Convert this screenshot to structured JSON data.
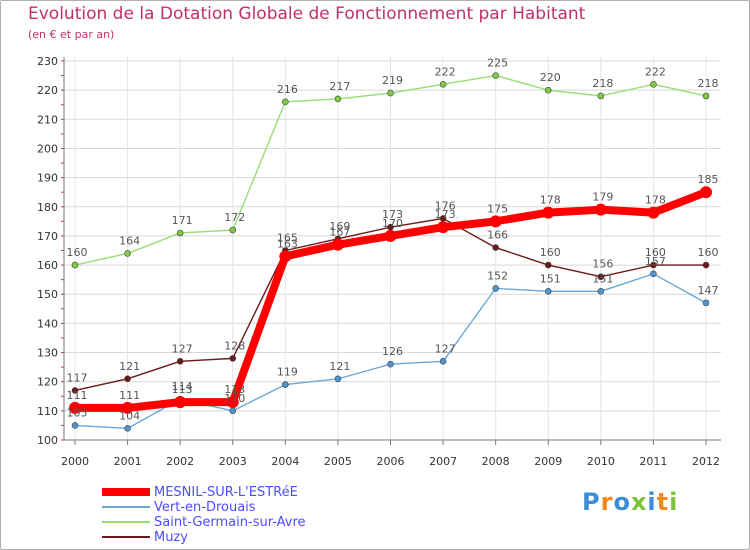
{
  "chart_data": {
    "type": "line",
    "title": "Evolution de la Dotation Globale de Fonctionnement par Habitant",
    "subtitle": "(en € et par an)",
    "x": [
      "2000",
      "2001",
      "2002",
      "2003",
      "2004",
      "2005",
      "2006",
      "2007",
      "2008",
      "2009",
      "2010",
      "2011",
      "2012"
    ],
    "ylim": [
      100,
      230
    ],
    "yticks": [
      100,
      110,
      120,
      130,
      140,
      150,
      160,
      170,
      180,
      190,
      200,
      210,
      220,
      230
    ],
    "grid": true,
    "legend_position": "bottom-left",
    "series": [
      {
        "name": "MESNIL-SUR-L'ESTRéE",
        "color": "#ff0000",
        "marker_color": "#ff0000",
        "values": [
          111,
          111,
          113,
          113,
          163,
          167,
          170,
          173,
          175,
          178,
          179,
          178,
          185
        ]
      },
      {
        "name": "Vert-en-Drouais",
        "color": "#6aa8d8",
        "marker_color": "#4f94cd",
        "values": [
          105,
          104,
          114,
          110,
          119,
          121,
          126,
          127,
          152,
          151,
          151,
          157,
          147
        ]
      },
      {
        "name": "Saint-Germain-sur-Avre",
        "color": "#99dd77",
        "marker_color": "#7ccc44",
        "values": [
          160,
          164,
          171,
          172,
          216,
          217,
          219,
          222,
          225,
          220,
          218,
          222,
          218
        ]
      },
      {
        "name": "Muzy",
        "color": "#6b1a1a",
        "marker_color": "#6b1a1a",
        "values": [
          117,
          121,
          127,
          128,
          165,
          169,
          173,
          176,
          166,
          160,
          156,
          160,
          160
        ]
      }
    ]
  },
  "logo": {
    "text": "Proxiti",
    "colors": [
      "#3a8fd8",
      "#f08a1c",
      "#3a8fd8",
      "#7cc23a",
      "#3a8fd8",
      "#f08a1c",
      "#7cc23a"
    ]
  }
}
